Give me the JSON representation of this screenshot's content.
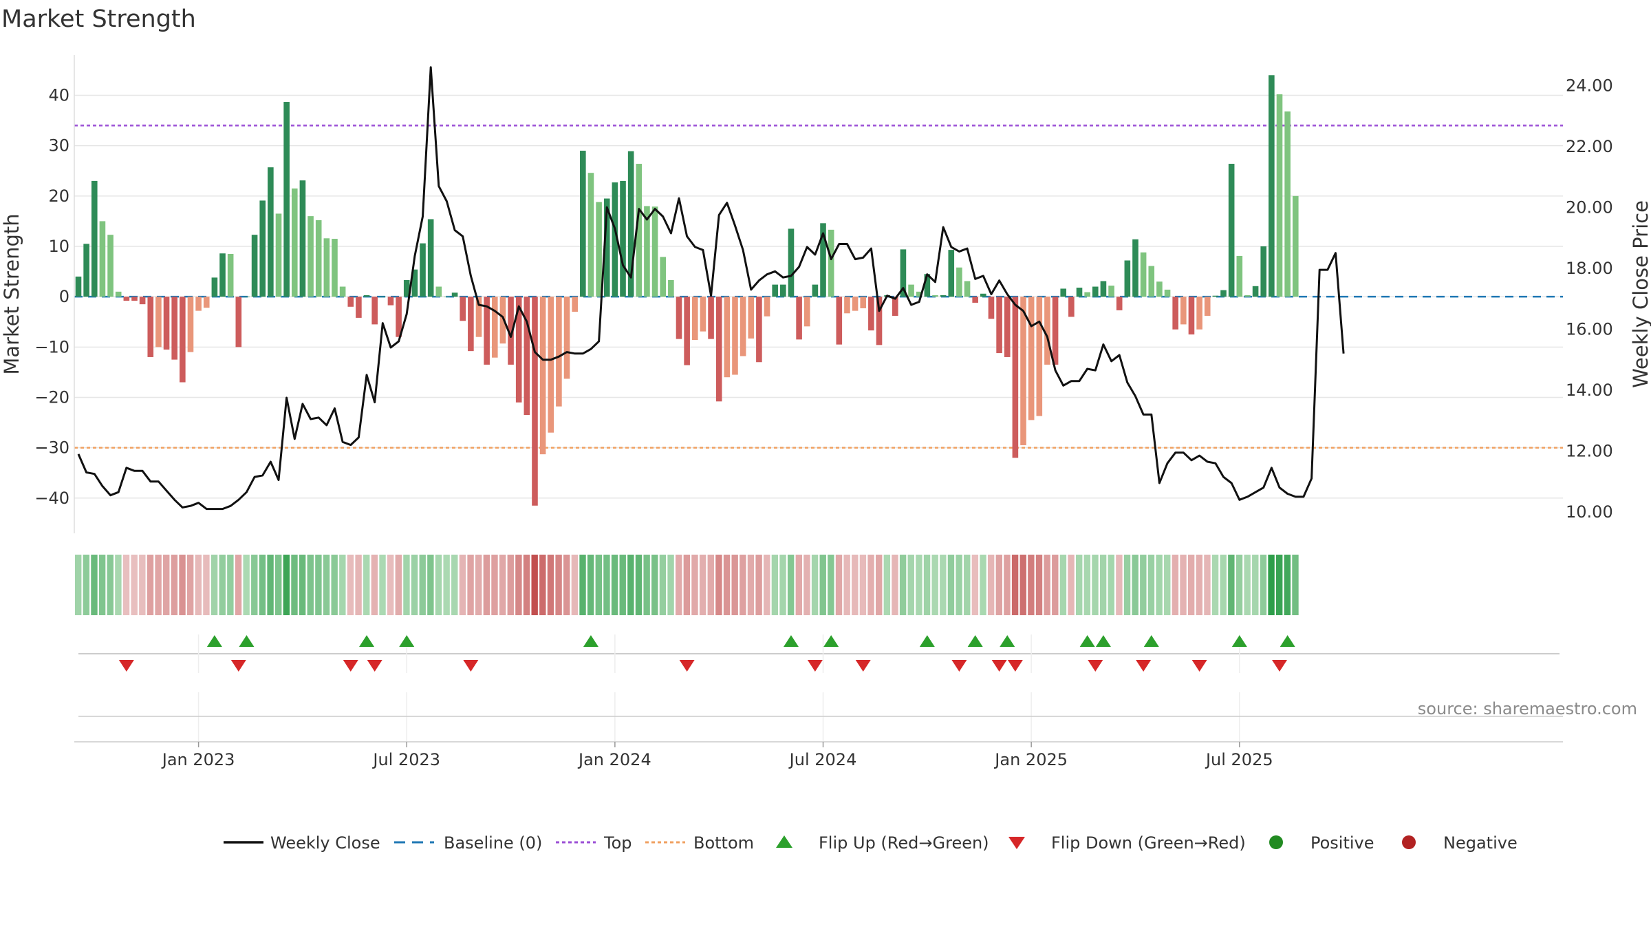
{
  "title": "Market Strength",
  "source": "source: sharemaestro.com",
  "colors": {
    "green_dark": "#2e8b57",
    "green_light": "#7fc47f",
    "red_dark": "#cd5c5c",
    "red_light": "#e9967a",
    "line": "#111111",
    "baseline": "#1f77b4",
    "top": "#9b4fd6",
    "bottom": "#f0a060",
    "flip_up": "#2ca02c",
    "flip_down": "#d62728",
    "positive": "#228b22",
    "negative": "#b22222"
  },
  "chart_data": {
    "type": "bar",
    "title": "Market Strength",
    "ylabel": "Market Strength",
    "y2label": "Weekly Close Price",
    "ylim": [
      -47,
      48
    ],
    "y2lim": [
      9.3,
      25.0
    ],
    "yticks": [
      "40",
      "30",
      "20",
      "10",
      "0",
      "−10",
      "−20",
      "−30",
      "−40"
    ],
    "y2ticks": [
      "24.00",
      "22.00",
      "20.00",
      "18.00",
      "16.00",
      "14.00",
      "12.00",
      "10.00"
    ],
    "xticks": [
      "Jan 2023",
      "Jul 2023",
      "Jan 2024",
      "Jul 2024",
      "Jan 2025",
      "Jul 2025"
    ],
    "xtick_weeks": [
      15,
      41,
      67,
      93,
      119,
      145
    ],
    "top_level": 34,
    "bottom_level": -30,
    "grid": true,
    "legend_position": "bottom",
    "strength": [
      4,
      10.5,
      23,
      15,
      12.3,
      1,
      -0.8,
      -0.8,
      -1.5,
      -12,
      -10,
      -10.5,
      -12.5,
      -17,
      -11,
      -2.8,
      -2.2,
      3.8,
      8.6,
      8.5,
      -10,
      0,
      12.3,
      19.1,
      25.7,
      16.5,
      38.7,
      21.5,
      23.1,
      16,
      15.2,
      11.6,
      11.5,
      2,
      -2,
      -4.2,
      0.3,
      -5.5,
      0,
      -1.7,
      -8,
      3.3,
      5.4,
      10.6,
      15.4,
      2,
      0,
      0.8,
      -4.8,
      -10.8,
      -8,
      -13.5,
      -12.1,
      -9.3,
      -13.5,
      -21,
      -23.5,
      -41.5,
      -31.3,
      -27,
      -21.8,
      -16.3,
      -3,
      29,
      24.6,
      18.8,
      19.5,
      22.7,
      23,
      28.9,
      26.4,
      18,
      17.9,
      7.9,
      3.3,
      -8.4,
      -13.6,
      -8.6,
      -6.9,
      -8.4,
      -20.8,
      -16,
      -15.5,
      -11.8,
      -8.3,
      -13,
      -3.9,
      2.4,
      2.4,
      13.5,
      -8.5,
      -5.9,
      2.4,
      14.6,
      13.3,
      -9.5,
      -3.3,
      -2.8,
      -2.3,
      -6.7,
      -9.6,
      0.3,
      -3.8,
      9.4,
      2.4,
      1,
      4.5,
      0.3,
      0.3,
      9.3,
      5.8,
      3.1,
      -1.2,
      0.6,
      -4.4,
      -11.2,
      -12,
      -32,
      -29.5,
      -24.5,
      -23.7,
      -13.5,
      -13.5,
      1.6,
      -4,
      1.8,
      0.9,
      2,
      3.1,
      2.2,
      -2.7,
      7.2,
      11.4,
      8.8,
      6.1,
      3,
      1.4,
      -6.5,
      -5.5,
      -7.5,
      -6.5,
      -3.8,
      0.2,
      1.3,
      26.4,
      8.1,
      0.3,
      2.1,
      10,
      44,
      40.2,
      36.8,
      20
    ],
    "close": [
      11.9,
      11.3,
      11.25,
      10.85,
      10.55,
      10.65,
      11.45,
      11.35,
      11.35,
      11,
      11,
      10.7,
      10.4,
      10.15,
      10.2,
      10.3,
      10.1,
      10.1,
      10.1,
      10.2,
      10.4,
      10.65,
      11.15,
      11.2,
      11.65,
      11.05,
      13.75,
      12.4,
      13.55,
      13.05,
      13.1,
      12.85,
      13.4,
      12.3,
      12.2,
      12.45,
      14.5,
      13.6,
      16.2,
      15.4,
      15.6,
      16.5,
      18.4,
      19.7,
      24.6,
      20.7,
      20.2,
      19.25,
      19.05,
      17.75,
      16.8,
      16.75,
      16.6,
      16.4,
      15.75,
      16.75,
      16.25,
      15.25,
      15,
      15,
      15.1,
      15.25,
      15.2,
      15.2,
      15.35,
      15.6,
      20,
      19.3,
      18.1,
      17.7,
      19.95,
      19.6,
      19.95,
      19.7,
      19.15,
      20.3,
      19.05,
      18.7,
      18.6,
      17.1,
      19.75,
      20.15,
      19.4,
      18.6,
      17.3,
      17.6,
      17.8,
      17.9,
      17.7,
      17.75,
      18.05,
      18.7,
      18.45,
      19.15,
      18.3,
      18.8,
      18.8,
      18.3,
      18.35,
      18.65,
      16.6,
      17.1,
      17,
      17.35,
      16.8,
      16.9,
      17.8,
      17.55,
      19.35,
      18.7,
      18.55,
      18.65,
      17.65,
      17.75,
      17.15,
      17.6,
      17.15,
      16.8,
      16.6,
      16.1,
      16.25,
      15.75,
      14.65,
      14.15,
      14.3,
      14.3,
      14.7,
      14.65,
      15.5,
      14.95,
      15.15,
      14.25,
      13.8,
      13.2,
      13.2,
      10.95,
      11.6,
      11.95,
      11.95,
      11.7,
      11.85,
      11.65,
      11.6,
      11.15,
      10.95,
      10.4,
      10.5,
      10.65,
      10.8,
      11.45,
      10.8,
      10.6,
      10.5,
      10.5,
      11.1,
      17.95,
      17.95,
      18.5,
      15.2
    ],
    "flip_up": [
      17,
      21,
      36,
      41,
      64,
      89,
      94,
      106,
      112,
      116,
      126,
      128,
      134,
      145,
      151
    ],
    "flip_down": [
      6,
      20,
      34,
      37,
      49,
      76,
      92,
      98,
      110,
      115,
      117,
      127,
      133,
      140,
      150
    ]
  },
  "legend": [
    {
      "label": "Weekly Close",
      "key": "line"
    },
    {
      "label": "Baseline (0)",
      "key": "baseline"
    },
    {
      "label": "Top",
      "key": "top"
    },
    {
      "label": "Bottom",
      "key": "bottom"
    },
    {
      "label": "Flip Up (Red→Green)",
      "key": "flip_up"
    },
    {
      "label": "Flip Down (Green→Red)",
      "key": "flip_down"
    },
    {
      "label": "Positive",
      "key": "positive"
    },
    {
      "label": "Negative",
      "key": "negative"
    }
  ]
}
